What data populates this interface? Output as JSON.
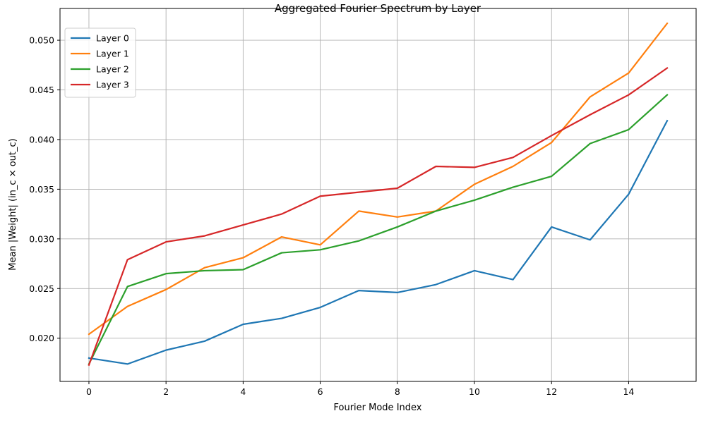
{
  "chart_data": {
    "type": "line",
    "title": "Aggregated Fourier Spectrum by Layer",
    "xlabel": "Fourier Mode Index",
    "ylabel": "Mean |Weight| (in_c × out_c)",
    "x": [
      0,
      1,
      2,
      3,
      4,
      5,
      6,
      7,
      8,
      9,
      10,
      11,
      12,
      13,
      14,
      15
    ],
    "xlim": [
      -0.75,
      15.75
    ],
    "ylim": [
      0.01565,
      0.0532
    ],
    "xticks": [
      0,
      2,
      4,
      6,
      8,
      10,
      12,
      14
    ],
    "yticks": [
      0.02,
      0.025,
      0.03,
      0.035,
      0.04,
      0.045,
      0.05
    ],
    "xtick_labels": [
      "0",
      "2",
      "4",
      "6",
      "8",
      "10",
      "12",
      "14"
    ],
    "ytick_labels": [
      "0.020",
      "0.025",
      "0.030",
      "0.035",
      "0.040",
      "0.045",
      "0.050"
    ],
    "grid": true,
    "legend_position": "top-left",
    "series": [
      {
        "name": "Layer 0",
        "color": "#1f77b4",
        "values": [
          0.018,
          0.0174,
          0.0188,
          0.0197,
          0.0214,
          0.022,
          0.0231,
          0.0248,
          0.0246,
          0.0254,
          0.0268,
          0.0259,
          0.0312,
          0.0299,
          0.0345,
          0.0419
        ]
      },
      {
        "name": "Layer 1",
        "color": "#ff7f0e",
        "values": [
          0.0204,
          0.0232,
          0.0249,
          0.0271,
          0.0281,
          0.0302,
          0.0294,
          0.0328,
          0.0322,
          0.0328,
          0.0355,
          0.0373,
          0.0397,
          0.0443,
          0.0467,
          0.0517
        ]
      },
      {
        "name": "Layer 2",
        "color": "#2ca02c",
        "values": [
          0.0174,
          0.0252,
          0.0265,
          0.0268,
          0.0269,
          0.0286,
          0.0289,
          0.0298,
          0.0312,
          0.0328,
          0.0339,
          0.0352,
          0.0363,
          0.0396,
          0.041,
          0.0445
        ]
      },
      {
        "name": "Layer 3",
        "color": "#d62728",
        "values": [
          0.0173,
          0.0279,
          0.0297,
          0.0303,
          0.0314,
          0.0325,
          0.0343,
          0.0347,
          0.0351,
          0.0373,
          0.0372,
          0.0382,
          0.0404,
          0.0425,
          0.0445,
          0.0472
        ]
      }
    ]
  }
}
